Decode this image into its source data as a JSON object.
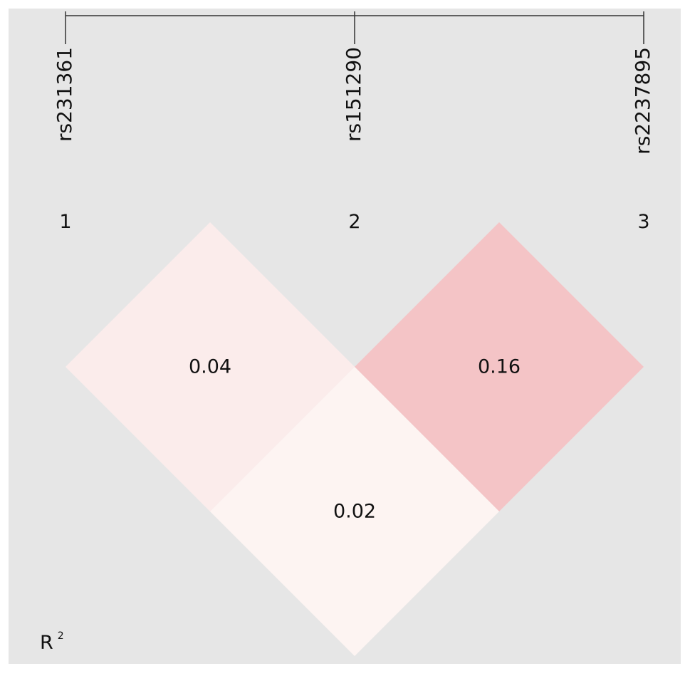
{
  "chart_data": {
    "type": "heatmap",
    "variant": "linkage-disequilibrium-triangle",
    "measure_label": "R",
    "measure_superscript": "2",
    "markers": [
      {
        "index": "1",
        "name": "rs231361"
      },
      {
        "index": "2",
        "name": "rs151290"
      },
      {
        "index": "3",
        "name": "rs2237895"
      }
    ],
    "cells": [
      {
        "i": 1,
        "j": 2,
        "value": 0.04,
        "label": "0.04",
        "color": "#fbeceb"
      },
      {
        "i": 2,
        "j": 3,
        "value": 0.16,
        "label": "0.16",
        "color": "#f4c4c6"
      },
      {
        "i": 1,
        "j": 3,
        "value": 0.02,
        "label": "0.02",
        "color": "#fdf4f2"
      }
    ],
    "colors": {
      "background": "#e6e6e6",
      "line": "#333333"
    }
  }
}
